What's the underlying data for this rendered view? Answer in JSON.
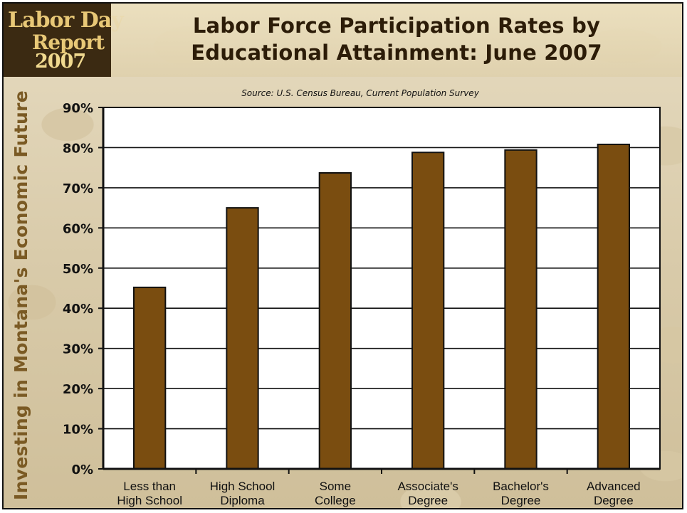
{
  "logo": {
    "line1": "Labor Day",
    "line2": "Report",
    "line3": "2007"
  },
  "side_title": "Investing in Montana's Economic Future",
  "colors": {
    "bar": "#7a4d10",
    "bar_stroke": "#111111",
    "title": "#2c1c08",
    "logo_bg": "#3b2a12",
    "side_title": "#7a5a24"
  },
  "chart_data": {
    "type": "bar",
    "title": "Labor Force Participation Rates by Educational Attainment: June 2007",
    "title_lines": [
      "Labor Force Participation Rates by",
      "Educational Attainment: June 2007"
    ],
    "subtitle": "Source: U.S. Census Bureau, Current Population Survey",
    "xlabel": "",
    "ylabel": "",
    "categories": [
      [
        "Less than",
        "High School"
      ],
      [
        "High School",
        "Diploma"
      ],
      [
        "Some",
        "College"
      ],
      [
        "Associate's",
        "Degree"
      ],
      [
        "Bachelor's",
        "Degree"
      ],
      [
        "Advanced",
        "Degree"
      ]
    ],
    "values": [
      45.2,
      65.0,
      73.7,
      78.8,
      79.4,
      80.8
    ],
    "ylim": [
      0,
      90
    ],
    "yticks": [
      0,
      10,
      20,
      30,
      40,
      50,
      60,
      70,
      80,
      90
    ],
    "ytick_labels": [
      "0%",
      "10%",
      "20%",
      "30%",
      "40%",
      "50%",
      "60%",
      "70%",
      "80%",
      "90%"
    ],
    "grid": true,
    "legend": "none"
  }
}
